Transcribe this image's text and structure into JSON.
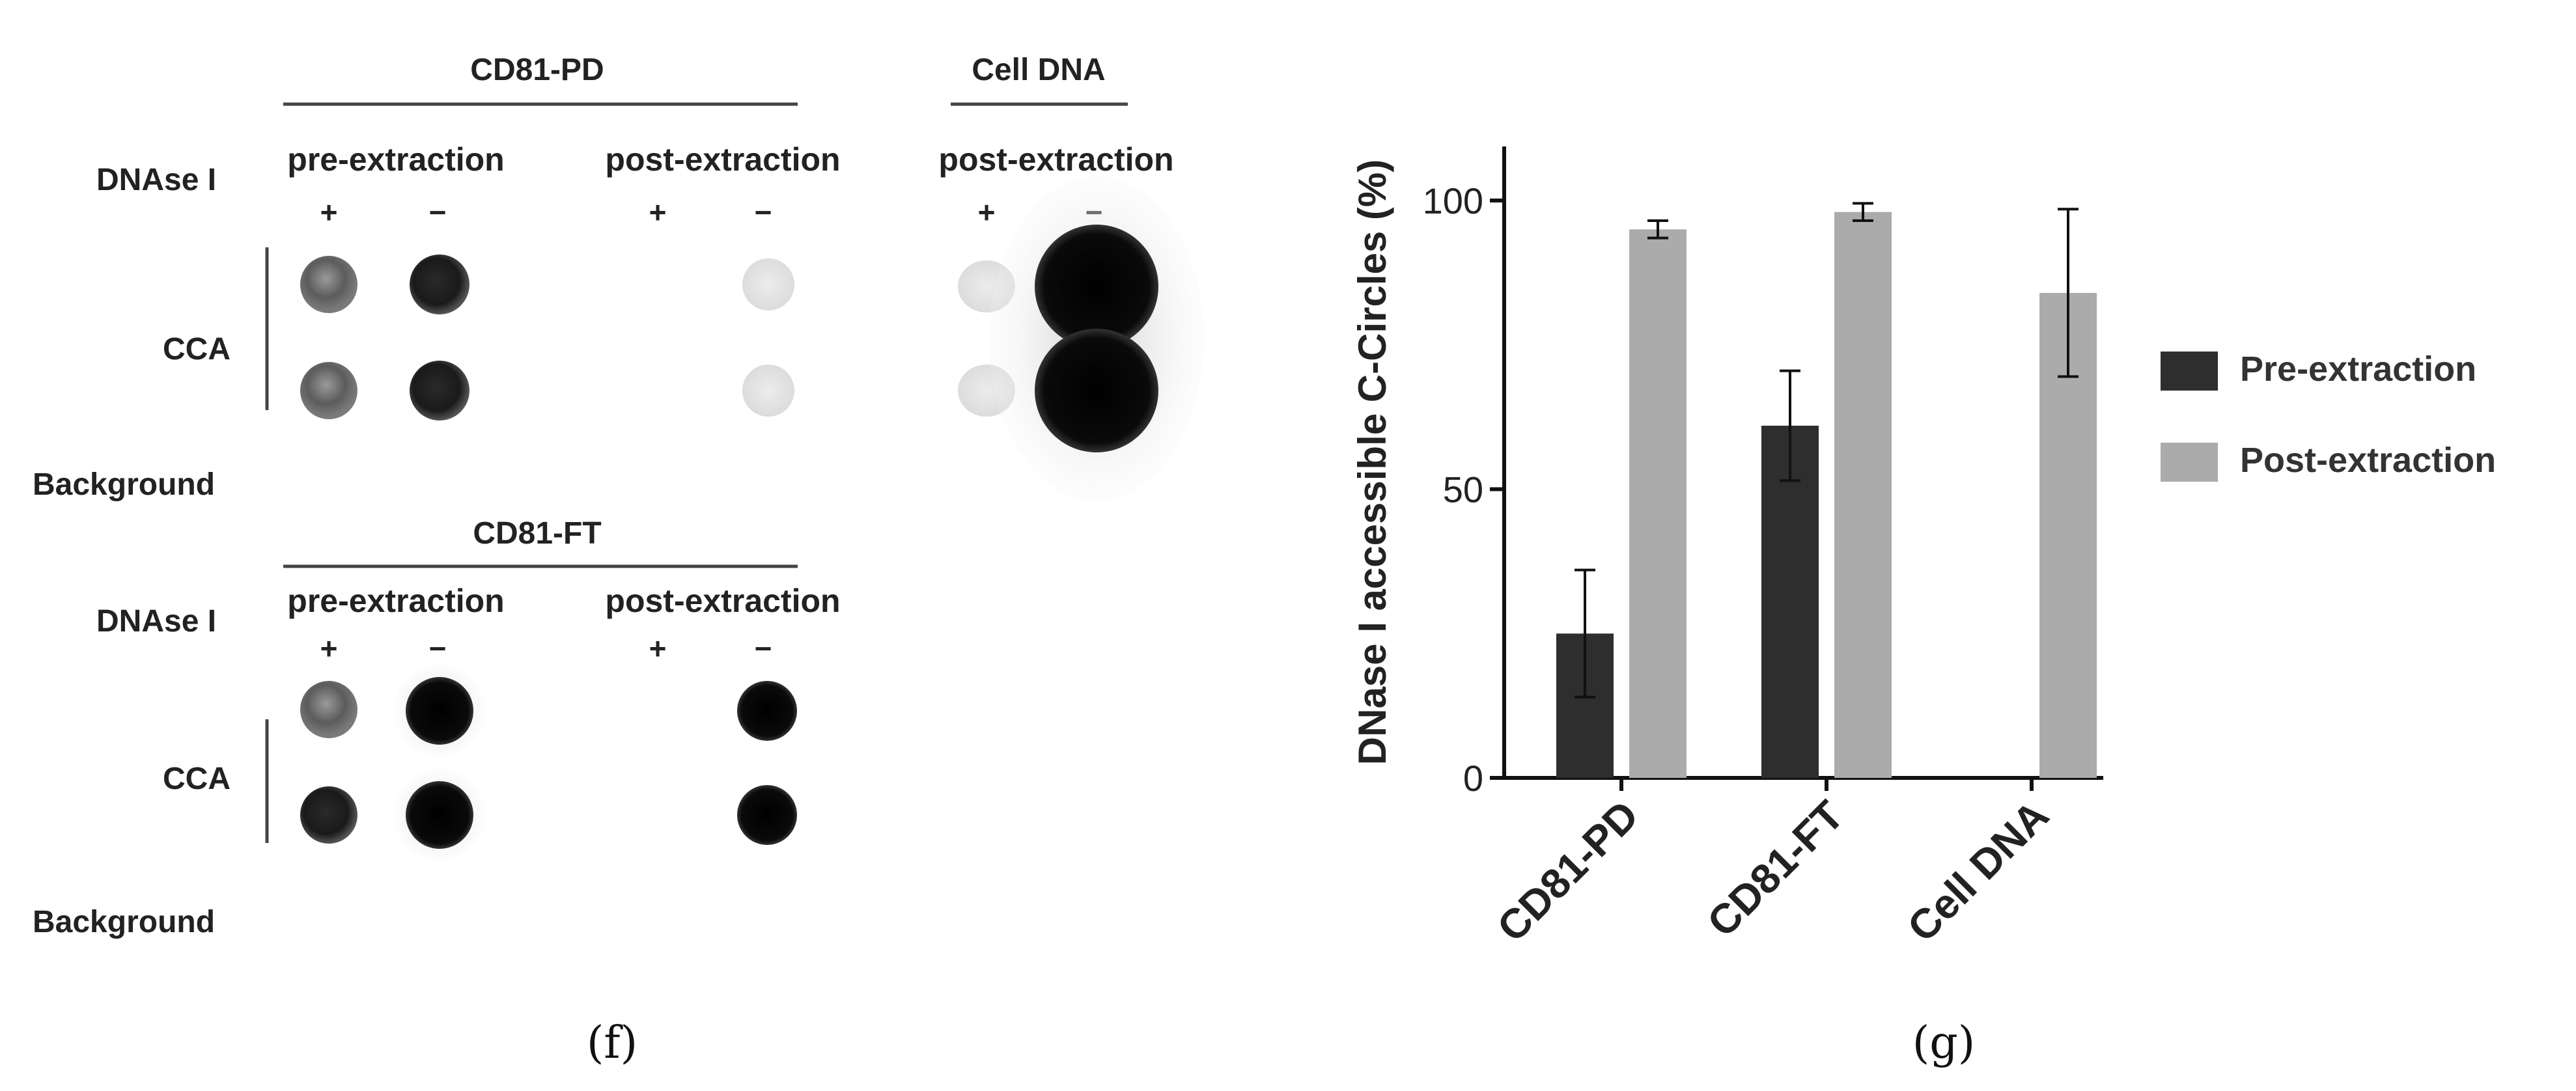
{
  "panel_f": {
    "label": "(f)",
    "blot_top": {
      "group_title": "CD81-PD",
      "cell_title": "Cell DNA",
      "dnase_label": "DNAse I",
      "cca_label": "CCA",
      "background_label": "Background",
      "pre_label": "pre-extraction",
      "post_label": "post-extraction",
      "cell_post_label": "post-extraction",
      "plus": "+",
      "minus": "−"
    },
    "blot_bottom": {
      "group_title": "CD81-FT",
      "dnase_label": "DNAse I",
      "cca_label": "CCA",
      "background_label": "Background",
      "pre_label": "pre-extraction",
      "post_label": "post-extraction",
      "plus": "+",
      "minus": "−"
    }
  },
  "panel_g": {
    "label": "(g)"
  },
  "chart_data": {
    "type": "bar",
    "title": "",
    "xlabel": "",
    "ylabel": "DNase I accessible C-Circles (%)",
    "ylim": [
      0,
      110
    ],
    "yticks": [
      0,
      50,
      100
    ],
    "categories": [
      "CD81-PD",
      "CD81-FT",
      "Cell DNA"
    ],
    "series": [
      {
        "name": "Pre-extraction",
        "color": "#2e2e2e",
        "values": [
          25,
          61,
          null
        ],
        "errors": [
          11,
          9.5,
          null
        ]
      },
      {
        "name": "Post-extraction",
        "color": "#ababab",
        "values": [
          95,
          98,
          84
        ],
        "errors": [
          1.5,
          1.5,
          14.5
        ]
      }
    ],
    "legend_position": "right",
    "grid": false
  }
}
